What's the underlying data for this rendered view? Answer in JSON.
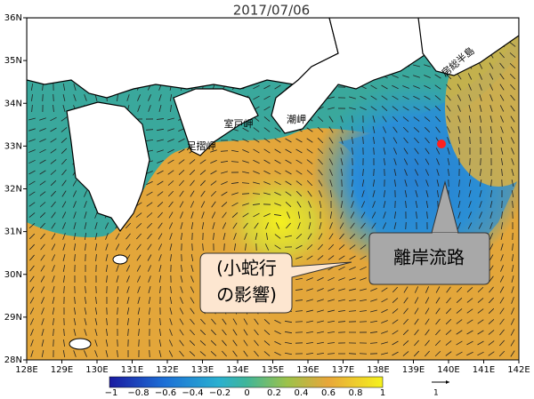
{
  "title": "2017/07/06",
  "axes": {
    "lon_labels": [
      "128E",
      "129E",
      "130E",
      "131E",
      "132E",
      "133E",
      "134E",
      "135E",
      "136E",
      "137E",
      "138E",
      "139E",
      "140E",
      "141E",
      "142E"
    ],
    "lat_labels": [
      "36N",
      "35N",
      "34N",
      "33N",
      "32N",
      "31N",
      "30N",
      "29N",
      "28N"
    ]
  },
  "colorbar": {
    "ticks": [
      "−1",
      "−0.8",
      "−0.6",
      "−0.4",
      "−0.2",
      "0",
      "0.2",
      "0.4",
      "0.6",
      "0.8",
      "1"
    ]
  },
  "vector_scale": "1",
  "places": [
    "房総半島",
    "潮岬",
    "室戸岬",
    "足摺岬"
  ],
  "callouts": [
    {
      "lines": [
        "離岸流路"
      ]
    },
    {
      "lines": [
        "(小蛇行",
        "の影響)"
      ]
    }
  ]
}
